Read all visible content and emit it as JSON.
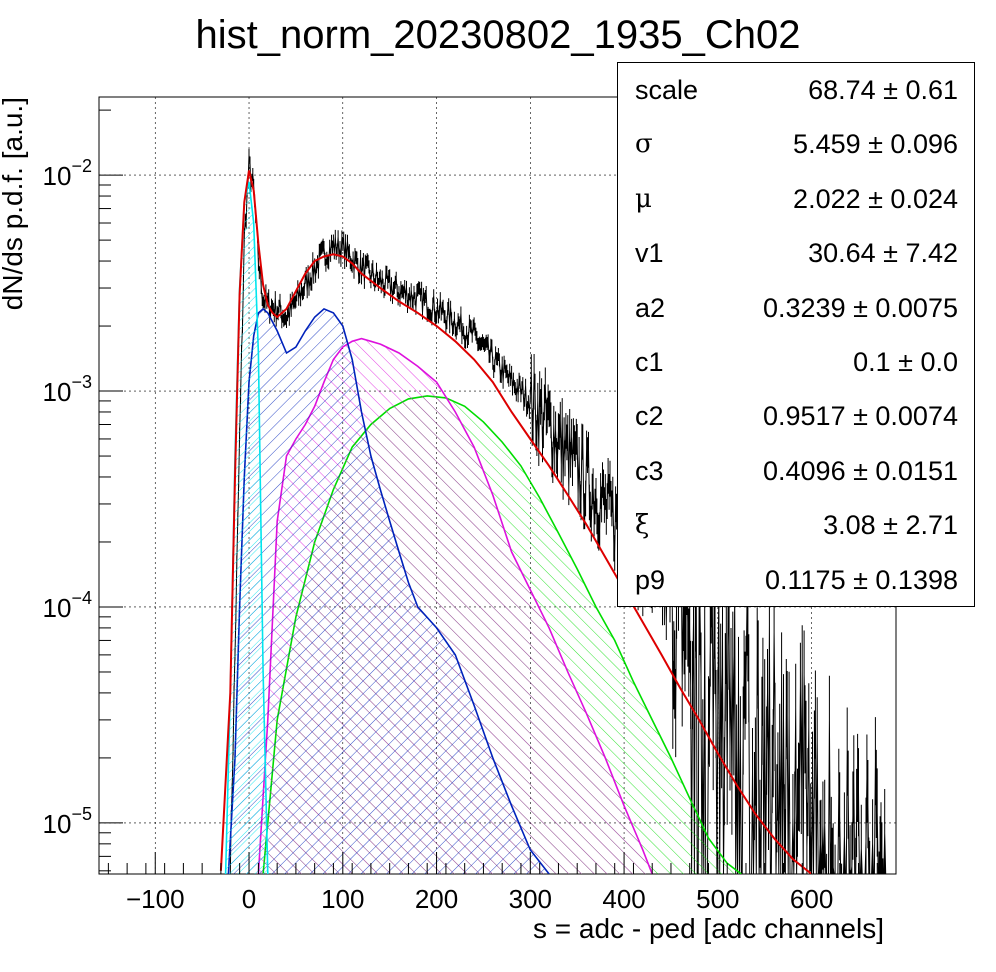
{
  "chart_data": {
    "type": "line",
    "title": "hist_norm_20230802_1935_Ch02",
    "xlabel": "s = adc - ped [adc channels]",
    "ylabel": "dN/ds p.d.f. [a.u.]",
    "xlim": [
      -160,
      690
    ],
    "ylim": [
      5.8e-06,
      0.023
    ],
    "yscale": "log",
    "grid": true,
    "x_ticks": [
      {
        "value": -100,
        "label": "−100"
      },
      {
        "value": 0,
        "label": "0"
      },
      {
        "value": 100,
        "label": "100"
      },
      {
        "value": 200,
        "label": "200"
      },
      {
        "value": 300,
        "label": "300"
      },
      {
        "value": 400,
        "label": "400"
      },
      {
        "value": 500,
        "label": "500"
      },
      {
        "value": 600,
        "label": "600"
      }
    ],
    "y_ticks": [
      {
        "value": 0.01,
        "base": "10",
        "exp": "−2"
      },
      {
        "value": 0.001,
        "base": "10",
        "exp": "−3"
      },
      {
        "value": 0.0001,
        "base": "10",
        "exp": "−4"
      },
      {
        "value": 1e-05,
        "base": "10",
        "exp": "−5"
      }
    ],
    "series": [
      {
        "color": "#000000",
        "style": "histogram",
        "x": [
          -20,
          -10,
          -5,
          0,
          5,
          10,
          15,
          20,
          30,
          40,
          50,
          60,
          70,
          80,
          90,
          100,
          110,
          120,
          140,
          160,
          180,
          200,
          220,
          240,
          260,
          280,
          300,
          320,
          340,
          360,
          380,
          400,
          420,
          440,
          460,
          480,
          500,
          520,
          540,
          560,
          580,
          600,
          620,
          640,
          660,
          680
        ],
        "y": [
          6e-06,
          0.0006,
          0.005,
          0.011,
          0.0085,
          0.004,
          0.0027,
          0.0025,
          0.0024,
          0.0022,
          0.0026,
          0.0031,
          0.0037,
          0.0043,
          0.0047,
          0.0046,
          0.0041,
          0.0037,
          0.0032,
          0.0029,
          0.0027,
          0.0024,
          0.0021,
          0.0018,
          0.0014,
          0.0011,
          0.0009,
          0.0007,
          0.0005,
          0.00038,
          0.00029,
          0.00022,
          0.00016,
          0.00012,
          9e-05,
          7e-05,
          5e-05,
          4e-05,
          3e-05,
          2.5e-05,
          2e-05,
          1.5e-05,
          1e-05,
          8e-06,
          7e-06,
          6e-06
        ]
      },
      {
        "color": "#dd0000",
        "style": "line",
        "x": [
          -30,
          -20,
          -15,
          -10,
          -5,
          0,
          5,
          10,
          15,
          20,
          25,
          30,
          40,
          50,
          60,
          70,
          80,
          90,
          100,
          110,
          120,
          140,
          160,
          180,
          200,
          220,
          240,
          260,
          280,
          300,
          320,
          340,
          360,
          380,
          400,
          420,
          440,
          460,
          480,
          500,
          520,
          540,
          560,
          580,
          600
        ],
        "y": [
          6e-06,
          4e-05,
          0.0004,
          0.0028,
          0.0075,
          0.0105,
          0.0085,
          0.0048,
          0.0031,
          0.0025,
          0.0023,
          0.0022,
          0.0024,
          0.0029,
          0.0035,
          0.004,
          0.0042,
          0.0043,
          0.0042,
          0.0039,
          0.0035,
          0.003,
          0.0026,
          0.0023,
          0.002,
          0.0017,
          0.0014,
          0.0011,
          0.0008,
          0.0006,
          0.00045,
          0.00033,
          0.00024,
          0.00017,
          0.00012,
          8.5e-05,
          6e-05,
          4.2e-05,
          3e-05,
          2.1e-05,
          1.5e-05,
          1.1e-05,
          8.5e-06,
          6.8e-06,
          5.8e-06
        ]
      },
      {
        "color": "#00e5ee",
        "style": "filled",
        "x": [
          -25,
          -20,
          -15,
          -10,
          -5,
          0,
          5,
          10,
          15,
          20
        ],
        "y": [
          5.8e-06,
          4e-05,
          0.0005,
          0.003,
          0.0075,
          0.0093,
          0.006,
          0.0015,
          5e-05,
          5.8e-06
        ]
      },
      {
        "color": "#0022bb",
        "style": "filled",
        "x": [
          -22,
          -15,
          -10,
          -5,
          0,
          5,
          10,
          15,
          20,
          30,
          40,
          50,
          60,
          70,
          80,
          90,
          100,
          110,
          120,
          130,
          140,
          150,
          160,
          170,
          180,
          200,
          220,
          240,
          260,
          280,
          300,
          320
        ],
        "y": [
          5.8e-06,
          2e-05,
          0.0001,
          0.0004,
          0.0011,
          0.0018,
          0.0023,
          0.0024,
          0.0023,
          0.0019,
          0.0015,
          0.0016,
          0.0019,
          0.0022,
          0.0024,
          0.0023,
          0.002,
          0.0014,
          0.0008,
          0.0005,
          0.00035,
          0.00025,
          0.00018,
          0.00013,
          0.0001,
          8e-05,
          6e-05,
          3.5e-05,
          2e-05,
          1.2e-05,
          7.5e-06,
          5.8e-06
        ]
      },
      {
        "color": "#dd11dd",
        "style": "filled",
        "x": [
          10,
          20,
          30,
          40,
          50,
          60,
          70,
          80,
          90,
          100,
          110,
          120,
          130,
          140,
          160,
          180,
          200,
          220,
          240,
          260,
          280,
          300,
          320,
          340,
          360,
          380,
          400,
          420,
          430
        ],
        "y": [
          5.8e-06,
          3e-05,
          0.00025,
          0.0005,
          0.0006,
          0.0007,
          0.00085,
          0.0011,
          0.0014,
          0.0016,
          0.0017,
          0.00175,
          0.0017,
          0.00165,
          0.0015,
          0.0013,
          0.0011,
          0.0008,
          0.00055,
          0.00033,
          0.00018,
          0.00012,
          8e-05,
          5e-05,
          3.2e-05,
          2e-05,
          1.2e-05,
          7.5e-06,
          5.8e-06
        ]
      },
      {
        "color": "#00dd00",
        "style": "filled",
        "x": [
          15,
          30,
          50,
          70,
          90,
          110,
          130,
          150,
          170,
          190,
          210,
          230,
          250,
          270,
          290,
          310,
          330,
          350,
          370,
          390,
          410,
          430,
          450,
          470,
          490,
          510,
          525
        ],
        "y": [
          5.8e-06,
          3e-05,
          9e-05,
          0.0002,
          0.00035,
          0.00055,
          0.0007,
          0.00083,
          0.00092,
          0.00095,
          0.00093,
          0.00085,
          0.00072,
          0.00058,
          0.00045,
          0.00032,
          0.00022,
          0.00015,
          0.0001,
          7e-05,
          4.5e-05,
          3e-05,
          2e-05,
          1.3e-05,
          8.5e-06,
          6.5e-06,
          5.8e-06
        ]
      }
    ]
  },
  "stats": {
    "rows": [
      {
        "name": "scale",
        "value": "68.74 ± 0.61"
      },
      {
        "name": "σ",
        "value": "5.459 ± 0.096",
        "symbol": true
      },
      {
        "name": "μ",
        "value": "2.022 ± 0.024",
        "symbol": true
      },
      {
        "name": "v1",
        "value": "30.64 ± 7.42"
      },
      {
        "name": "a2",
        "value": "0.3239 ± 0.0075"
      },
      {
        "name": "c1",
        "value": "0.1 ± 0.0"
      },
      {
        "name": "c2",
        "value": "0.9517 ± 0.0074"
      },
      {
        "name": "c3",
        "value": "0.4096 ± 0.0151"
      },
      {
        "name": "ξ",
        "value": "3.08 ± 2.71",
        "symbol": true
      },
      {
        "name": "p9",
        "value": "0.1175 ± 0.1398"
      }
    ]
  }
}
